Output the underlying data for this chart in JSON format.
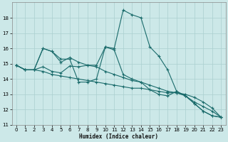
{
  "xlabel": "Humidex (Indice chaleur)",
  "xlim": [
    -0.5,
    23.5
  ],
  "ylim": [
    11,
    19
  ],
  "yticks": [
    11,
    12,
    13,
    14,
    15,
    16,
    17,
    18
  ],
  "xticks": [
    0,
    1,
    2,
    3,
    4,
    5,
    6,
    7,
    8,
    9,
    10,
    11,
    12,
    13,
    14,
    15,
    16,
    17,
    18,
    19,
    20,
    21,
    22,
    23
  ],
  "bg_color": "#cce8e8",
  "grid_color": "#aacfcf",
  "line_color": "#1a6b6b",
  "lines": [
    {
      "x": [
        0,
        1,
        2,
        3,
        4,
        5,
        6,
        7,
        8,
        9,
        10,
        11,
        12,
        13,
        14,
        15,
        16,
        17,
        18,
        19,
        20,
        21,
        22,
        23
      ],
      "y": [
        14.9,
        14.6,
        14.6,
        16.0,
        15.8,
        15.3,
        15.3,
        13.8,
        13.8,
        14.0,
        16.1,
        16.0,
        18.5,
        18.2,
        18.0,
        16.1,
        15.5,
        14.6,
        13.2,
        12.9,
        12.4,
        11.9,
        11.6,
        11.5
      ]
    },
    {
      "x": [
        0,
        1,
        2,
        3,
        4,
        5,
        6,
        7,
        8,
        9,
        10,
        11,
        12,
        13,
        14,
        15,
        16,
        17,
        18,
        19,
        20,
        21,
        22,
        23
      ],
      "y": [
        14.9,
        14.6,
        14.6,
        14.5,
        14.3,
        14.2,
        14.1,
        14.0,
        13.9,
        13.8,
        13.7,
        13.6,
        13.5,
        13.4,
        13.4,
        13.3,
        13.2,
        13.1,
        13.1,
        13.0,
        12.8,
        12.5,
        12.1,
        11.5
      ]
    },
    {
      "x": [
        0,
        1,
        2,
        3,
        4,
        5,
        6,
        7,
        8,
        9,
        10,
        11,
        12,
        13,
        14,
        15,
        16,
        17,
        18,
        19,
        20,
        21,
        22,
        23
      ],
      "y": [
        14.9,
        14.6,
        14.6,
        14.8,
        14.5,
        14.4,
        14.85,
        14.8,
        14.9,
        14.8,
        14.5,
        14.3,
        14.1,
        13.9,
        13.8,
        13.6,
        13.4,
        13.2,
        13.1,
        12.9,
        12.5,
        12.2,
        11.9,
        11.5
      ]
    },
    {
      "x": [
        0,
        1,
        2,
        3,
        4,
        5,
        6,
        7,
        8,
        9,
        10,
        11,
        12,
        13,
        14,
        15,
        16,
        17,
        18,
        19,
        20,
        21,
        22,
        23
      ],
      "y": [
        14.9,
        14.6,
        14.6,
        16.0,
        15.8,
        15.1,
        15.4,
        15.1,
        14.9,
        14.9,
        16.1,
        15.9,
        14.3,
        14.0,
        13.8,
        13.3,
        13.0,
        12.9,
        13.2,
        12.9,
        12.4,
        11.9,
        11.6,
        11.5
      ]
    }
  ]
}
